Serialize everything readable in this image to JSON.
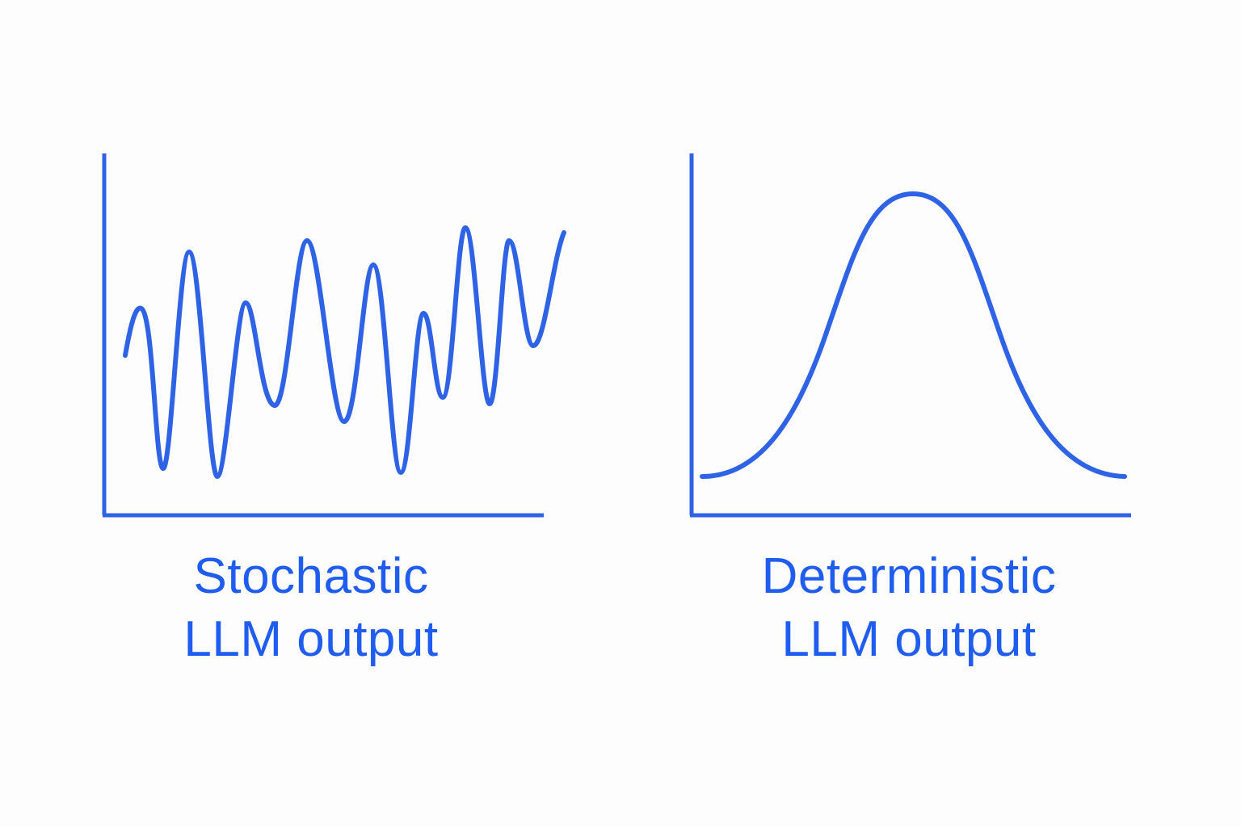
{
  "colors": {
    "accent": "#2f63e6",
    "text": "#1f5df0",
    "background": "#fdfdfd"
  },
  "panels": [
    {
      "id": "stochastic",
      "caption_line1": "Stochastic",
      "caption_line2": "LLM output",
      "curve_kind": "irregular-oscillation"
    },
    {
      "id": "deterministic",
      "caption_line1": "Deterministic",
      "caption_line2": "LLM output",
      "curve_kind": "bell-curve"
    }
  ]
}
